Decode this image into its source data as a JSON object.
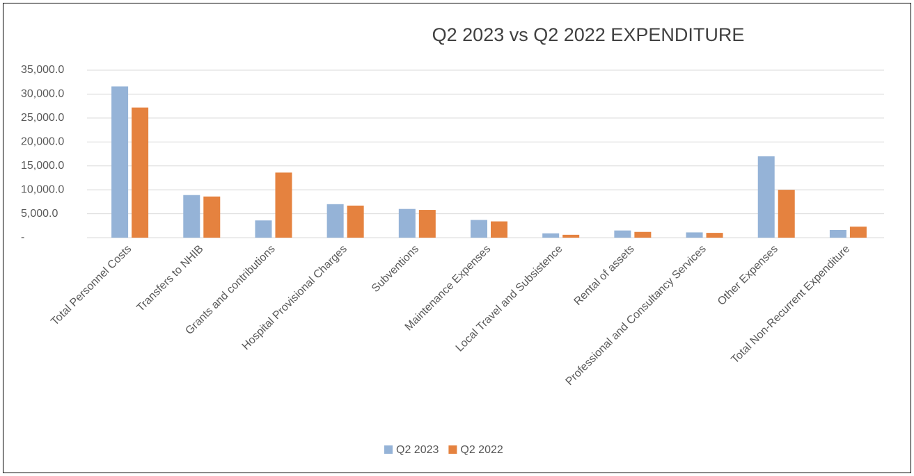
{
  "chart_data": {
    "type": "bar",
    "title": "Q2 2023 vs Q2 2022 EXPENDITURE",
    "categories": [
      "Total Personnel Costs",
      "Transfers to NHIB",
      "Grants and contributions",
      "Hospital Provisional Charges",
      "Subventions",
      "Maintenance Expenses",
      "Local Travel and Subsistence",
      "Rental of assets",
      "Professional and Consultancy Services",
      "Other Expenses",
      "Total Non-Recurrent Expenditure"
    ],
    "series": [
      {
        "name": "Q2 2023",
        "color": "#95b3d7",
        "values": [
          31600,
          8900,
          3600,
          7000,
          6000,
          3700,
          900,
          1500,
          1100,
          17000,
          1600
        ]
      },
      {
        "name": "Q2 2022",
        "color": "#e5823f",
        "values": [
          27200,
          8600,
          13600,
          6700,
          5800,
          3400,
          600,
          1200,
          1000,
          10000,
          2300
        ]
      }
    ],
    "ylim": [
      0,
      35000
    ],
    "yticks": [
      {
        "value": 0,
        "label": "-"
      },
      {
        "value": 5000,
        "label": "5,000.0"
      },
      {
        "value": 10000,
        "label": "10,000.0"
      },
      {
        "value": 15000,
        "label": "15,000.0"
      },
      {
        "value": 20000,
        "label": "20,000.0"
      },
      {
        "value": 25000,
        "label": "25,000.0"
      },
      {
        "value": 30000,
        "label": "30,000.0"
      },
      {
        "value": 35000,
        "label": "35,000.0"
      }
    ],
    "grid": true,
    "legend": "bottom"
  }
}
